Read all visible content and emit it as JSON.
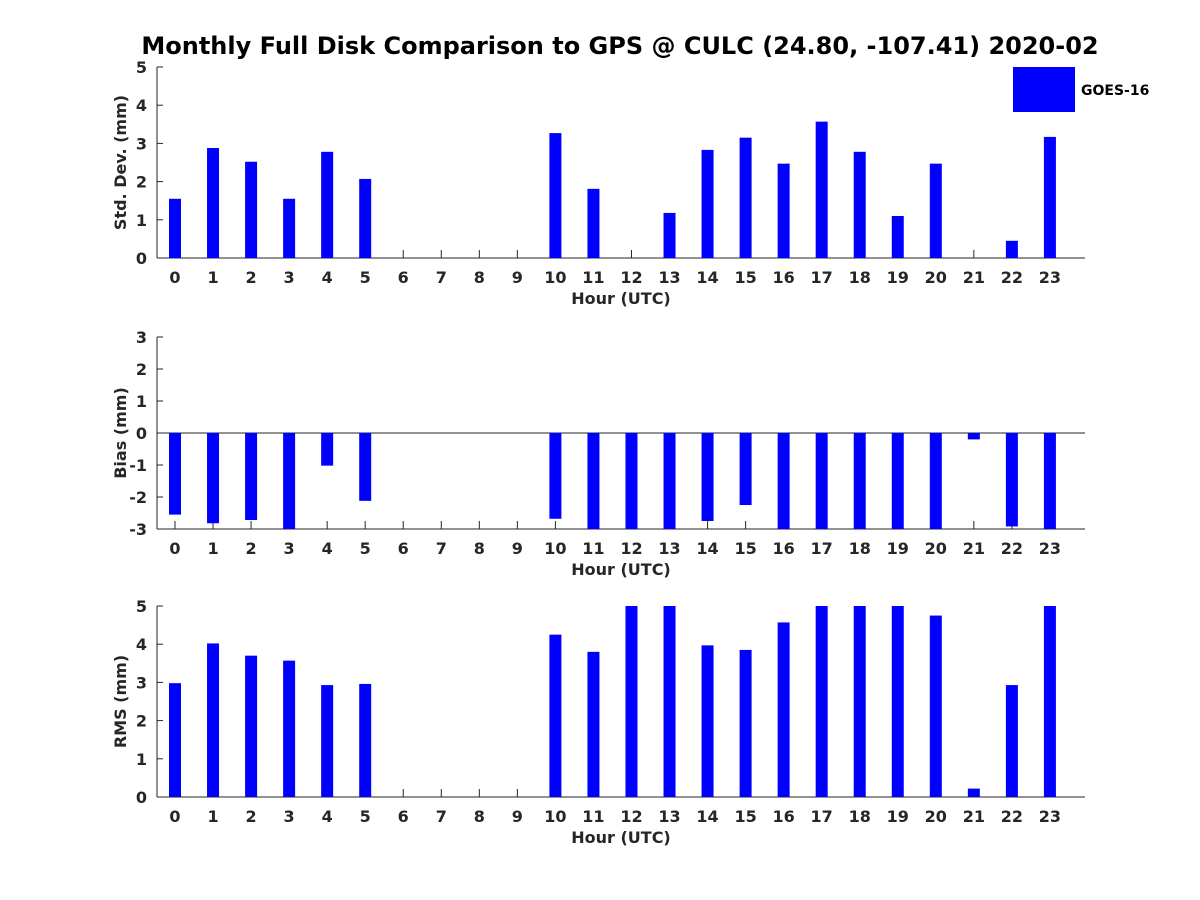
{
  "chart_data": [
    {
      "type": "bar",
      "title": "Monthly Full Disk Comparison to GPS @ CULC (24.80, -107.41) 2020-02",
      "xlabel": "Hour (UTC)",
      "ylabel": "Std. Dev. (mm)",
      "ylim": [
        0,
        5
      ],
      "yticks": [
        0,
        1,
        2,
        3,
        4,
        5
      ],
      "categories": [
        0,
        1,
        2,
        3,
        4,
        5,
        6,
        7,
        8,
        9,
        10,
        11,
        12,
        13,
        14,
        15,
        16,
        17,
        18,
        19,
        20,
        21,
        22,
        23
      ],
      "series": [
        {
          "name": "GOES-16",
          "color": "#0000ff",
          "values": [
            1.55,
            2.88,
            2.52,
            1.55,
            2.78,
            2.07,
            null,
            null,
            null,
            null,
            3.27,
            1.81,
            null,
            1.18,
            2.83,
            3.15,
            2.47,
            3.57,
            2.78,
            1.1,
            2.47,
            null,
            0.45,
            3.17
          ]
        }
      ],
      "legend": {
        "position": "top-right",
        "entries": [
          "GOES-16"
        ]
      }
    },
    {
      "type": "bar",
      "xlabel": "Hour (UTC)",
      "ylabel": "Bias (mm)",
      "ylim": [
        -3,
        3
      ],
      "yticks": [
        -3,
        -2,
        -1,
        0,
        1,
        2,
        3
      ],
      "categories": [
        0,
        1,
        2,
        3,
        4,
        5,
        6,
        7,
        8,
        9,
        10,
        11,
        12,
        13,
        14,
        15,
        16,
        17,
        18,
        19,
        20,
        21,
        22,
        23
      ],
      "series": [
        {
          "name": "GOES-16",
          "color": "#0000ff",
          "values": [
            -2.55,
            -2.82,
            -2.72,
            -3.0,
            -1.02,
            -2.12,
            null,
            null,
            null,
            null,
            -2.68,
            -3.0,
            -3.0,
            -3.0,
            -2.75,
            -2.25,
            -3.0,
            -3.0,
            -3.0,
            -3.0,
            -3.0,
            -0.2,
            -2.92,
            -3.0
          ]
        }
      ]
    },
    {
      "type": "bar",
      "xlabel": "Hour (UTC)",
      "ylabel": "RMS (mm)",
      "ylim": [
        0,
        5
      ],
      "yticks": [
        0,
        1,
        2,
        3,
        4,
        5
      ],
      "categories": [
        0,
        1,
        2,
        3,
        4,
        5,
        6,
        7,
        8,
        9,
        10,
        11,
        12,
        13,
        14,
        15,
        16,
        17,
        18,
        19,
        20,
        21,
        22,
        23
      ],
      "series": [
        {
          "name": "GOES-16",
          "color": "#0000ff",
          "values": [
            2.98,
            4.02,
            3.7,
            3.57,
            2.93,
            2.96,
            null,
            null,
            null,
            null,
            4.25,
            3.8,
            5.0,
            5.0,
            3.97,
            3.85,
            4.57,
            5.0,
            5.0,
            5.0,
            4.75,
            0.22,
            2.93,
            5.0
          ]
        }
      ]
    }
  ]
}
